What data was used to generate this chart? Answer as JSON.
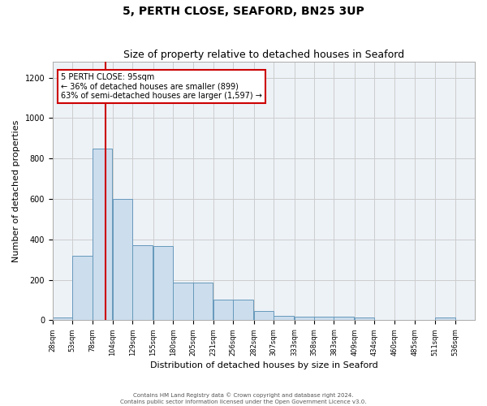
{
  "title1": "5, PERTH CLOSE, SEAFORD, BN25 3UP",
  "title2": "Size of property relative to detached houses in Seaford",
  "xlabel": "Distribution of detached houses by size in Seaford",
  "ylabel": "Number of detached properties",
  "bar_values": [
    15,
    320,
    850,
    600,
    370,
    365,
    185,
    185,
    100,
    100,
    45,
    20,
    18,
    17,
    17,
    12,
    0,
    0,
    0,
    12,
    0
  ],
  "bin_lefts": [
    28,
    53,
    78,
    104,
    129,
    155,
    180,
    205,
    231,
    256,
    282,
    307,
    333,
    358,
    383,
    409,
    434,
    460,
    485,
    511,
    536
  ],
  "bin_width": 25,
  "tick_labels": [
    "28sqm",
    "53sqm",
    "78sqm",
    "104sqm",
    "129sqm",
    "155sqm",
    "180sqm",
    "205sqm",
    "231sqm",
    "256sqm",
    "282sqm",
    "307sqm",
    "333sqm",
    "358sqm",
    "383sqm",
    "409sqm",
    "434sqm",
    "460sqm",
    "485sqm",
    "511sqm",
    "536sqm"
  ],
  "bar_color": "#ccdded",
  "bar_edge_color": "#6699bb",
  "vline_x": 95,
  "annotation_box_text": "5 PERTH CLOSE: 95sqm\n← 36% of detached houses are smaller (899)\n63% of semi-detached houses are larger (1,597) →",
  "ylim": [
    0,
    1280
  ],
  "yticks": [
    0,
    200,
    400,
    600,
    800,
    1000,
    1200
  ],
  "grid_color": "#cccccc",
  "background_color": "#edf2f7",
  "footer_text": "Contains HM Land Registry data © Crown copyright and database right 2024.\nContains public sector information licensed under the Open Government Licence v3.0.",
  "annotation_box_facecolor": "#ffffff",
  "annotation_box_edgecolor": "#cc0000",
  "vline_color": "#cc0000",
  "title1_fontsize": 10,
  "title2_fontsize": 9,
  "ylabel_fontsize": 8,
  "xlabel_fontsize": 8,
  "tick_fontsize": 6,
  "annot_fontsize": 7,
  "footer_fontsize": 5
}
